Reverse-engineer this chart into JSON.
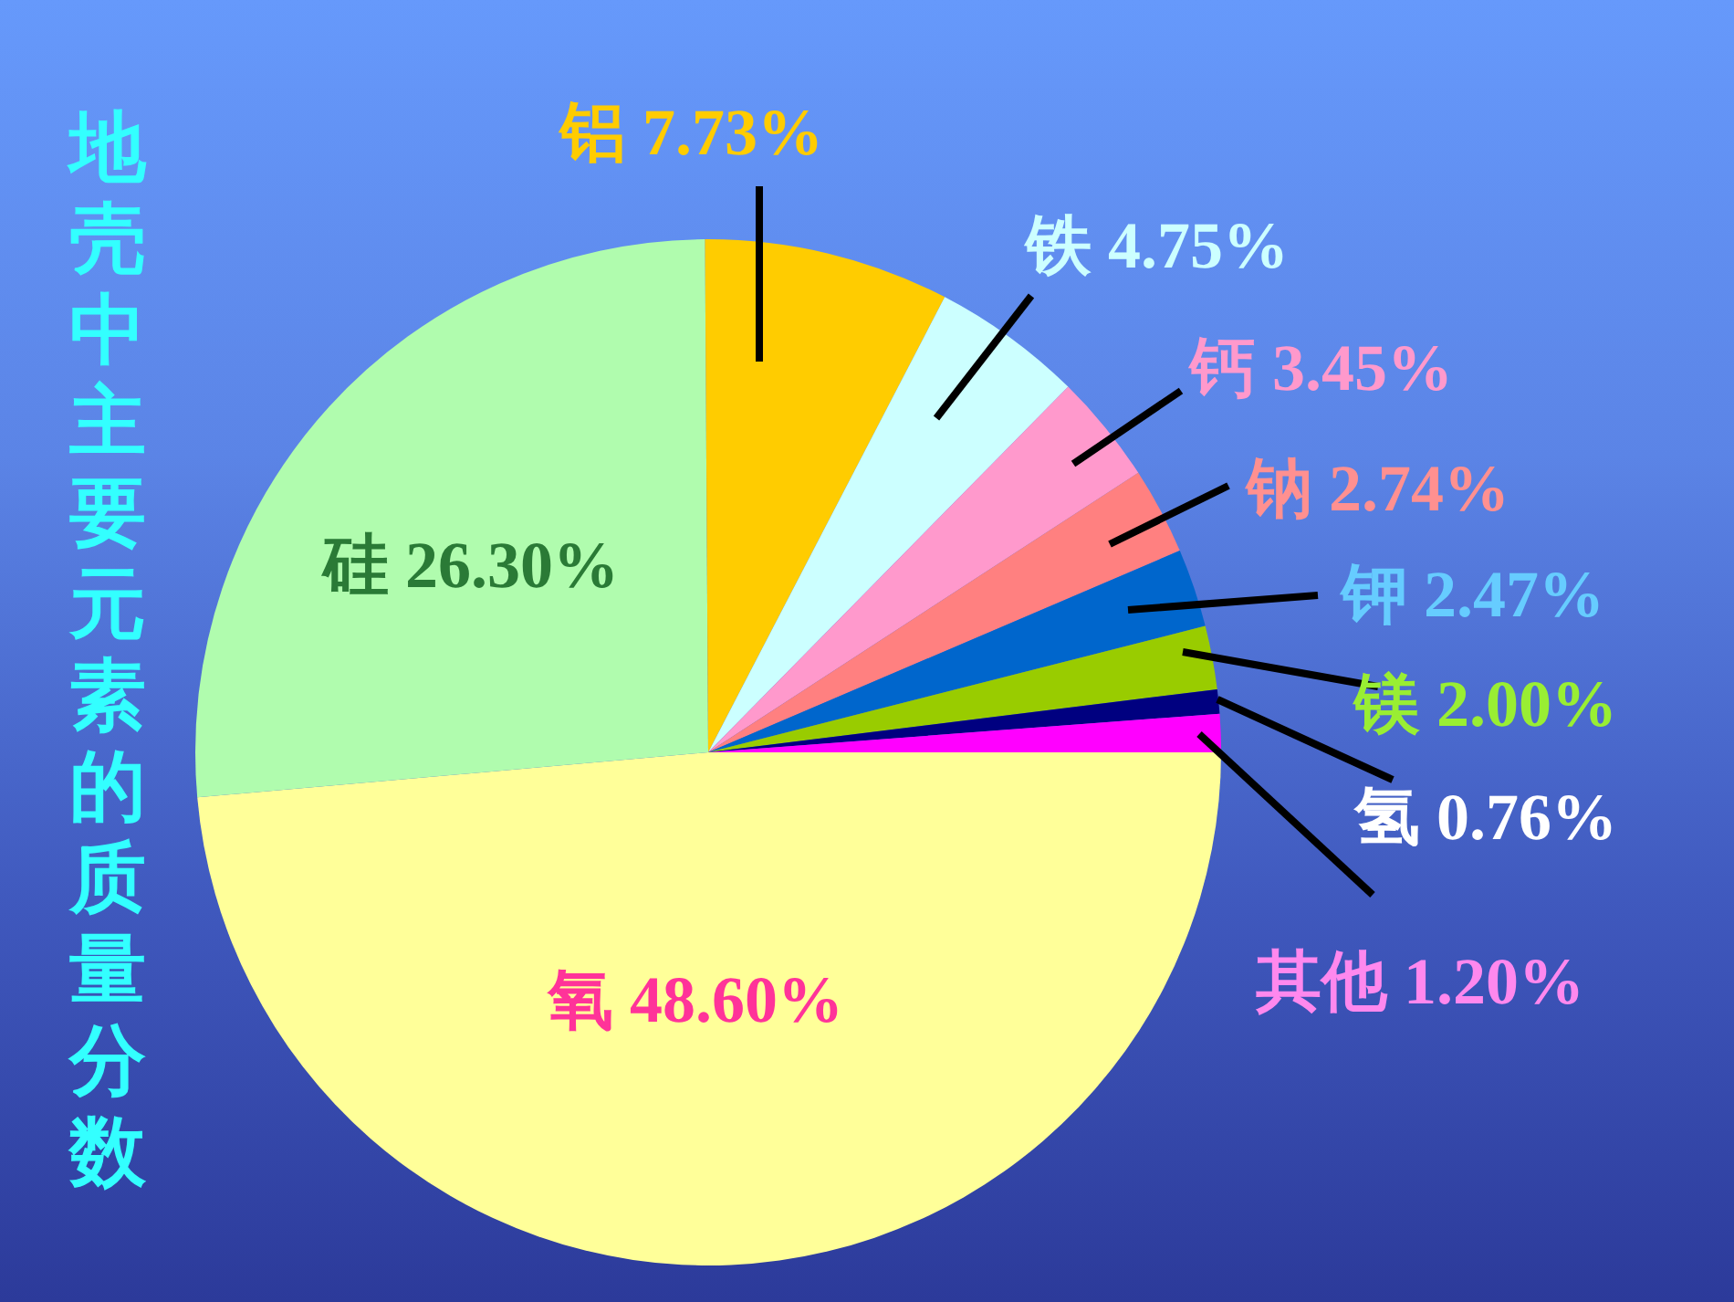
{
  "chart_data": {
    "type": "pie",
    "title": "地壳中主要元素的质量分数",
    "categories": [
      "氧",
      "硅",
      "铝",
      "铁",
      "钙",
      "钠",
      "钾",
      "镁",
      "氢",
      "其他"
    ],
    "values": [
      48.6,
      26.3,
      7.73,
      4.75,
      3.45,
      2.74,
      2.47,
      2.0,
      0.76,
      1.2
    ],
    "colors": [
      "#ffff99",
      "#b0fcae",
      "#ffcc00",
      "#ccffff",
      "#ff99cc",
      "#ff8080",
      "#0066cc",
      "#99cc00",
      "#000080",
      "#ff00ff"
    ],
    "value_labels": [
      "48.60%",
      "26.30%",
      "7.73%",
      "4.75%",
      "3.45%",
      "2.74%",
      "2.47%",
      "2.00%",
      "0.76%",
      "1.20%"
    ],
    "legend": false
  }
}
